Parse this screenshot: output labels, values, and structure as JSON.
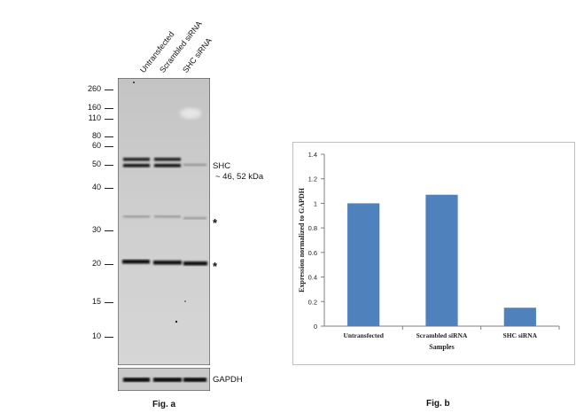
{
  "blot": {
    "lanes": [
      "Untransfected",
      "Scrambled siRNA",
      "SHC siRNA"
    ],
    "markers": [
      "260",
      "160",
      "110",
      "80",
      "60",
      "50",
      "40",
      "30",
      "20",
      "15",
      "10"
    ],
    "target_label": "SHC",
    "target_size": "~ 46, 52 kDa",
    "nonspecific_mark": "*",
    "loading_control": "GAPDH",
    "figure_label": "Fig. a"
  },
  "chart_data": {
    "type": "bar",
    "categories": [
      "Untransfected",
      "Scrambled siRNA",
      "SHC siRNA"
    ],
    "values": [
      1.0,
      1.07,
      0.15
    ],
    "xlabel": "Samples",
    "ylabel": "Expression normalized to GAPDH",
    "ylim": [
      0,
      1.4
    ],
    "yticks": [
      "0",
      "0.2",
      "0.4",
      "0.6",
      "0.8",
      "1",
      "1.2",
      "1.4"
    ],
    "grid": false,
    "bar_color": "#4f81bd",
    "figure_label": "Fig. b"
  }
}
